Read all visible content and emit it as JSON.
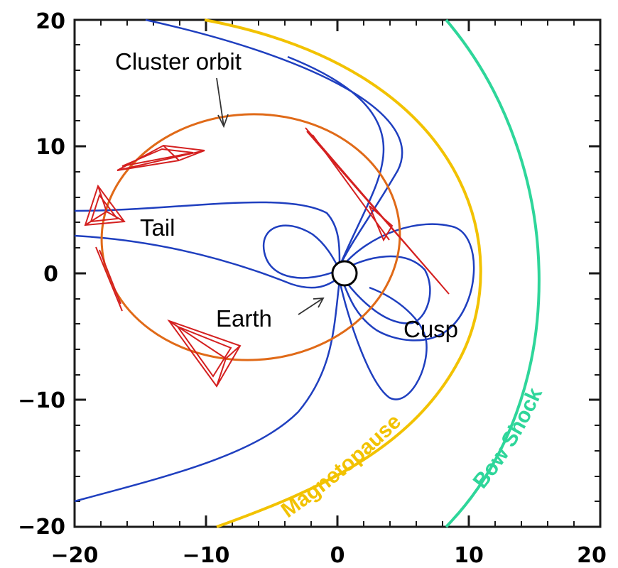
{
  "diagram": {
    "labels": {
      "cluster_orbit": "Cluster orbit",
      "tail": "Tail",
      "earth": "Earth",
      "cusp": "Cusp",
      "magnetopause": "Magnetopause",
      "bow_shock": "Bow Shock"
    },
    "axes": {
      "x_ticks": [
        "−20",
        "−10",
        "0",
        "10",
        "20"
      ],
      "y_ticks": [
        "20",
        "10",
        "0",
        "−10",
        "−20"
      ]
    },
    "colors": {
      "field_lines": "#1f3fbf",
      "magnetopause": "#f2c200",
      "bow_shock": "#2ed69a",
      "orbit": "#e06a18",
      "tetrahedra": "#d42020",
      "frame": "#1a1a1a"
    }
  }
}
